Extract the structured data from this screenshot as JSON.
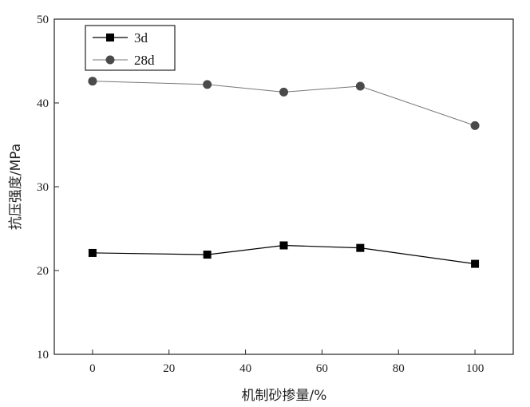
{
  "chart_data": {
    "type": "line",
    "title": "",
    "xlabel": "机制砂掺量/%",
    "ylabel": "抗压强度/MPa",
    "x": [
      0,
      30,
      50,
      70,
      100
    ],
    "xlim": [
      -10,
      110
    ],
    "ylim": [
      10,
      50
    ],
    "xticks": [
      0,
      20,
      40,
      60,
      80,
      100
    ],
    "yticks": [
      10,
      20,
      30,
      40,
      50
    ],
    "grid": false,
    "legend_position": "top-left",
    "series": [
      {
        "name": "3d",
        "marker": "square",
        "color": "#000000",
        "values": [
          22.1,
          21.9,
          23.0,
          22.7,
          20.8
        ]
      },
      {
        "name": "28d",
        "marker": "circle",
        "color": "#4a4a4a",
        "values": [
          42.6,
          42.2,
          41.3,
          42.0,
          37.3
        ]
      }
    ]
  }
}
